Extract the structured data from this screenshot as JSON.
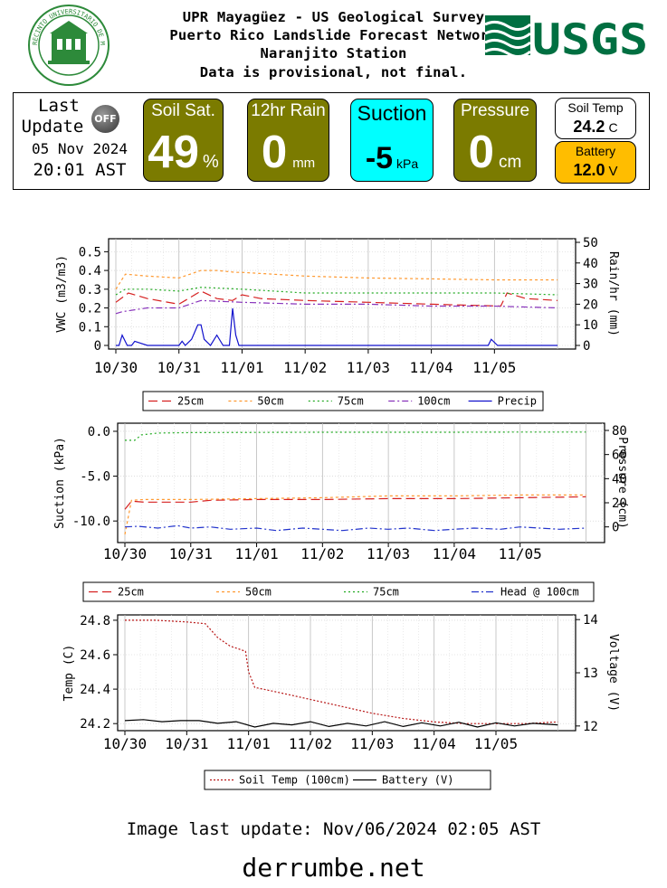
{
  "header": {
    "line1": "UPR Mayagüez - US Geological Survey",
    "line2": "Puerto Rico Landslide Forecast Network",
    "line3": "Naranjito Station",
    "line4": "Data is provisional, not final.",
    "usgs_logo_text": "USGS",
    "seal_text": "RECINTO UNIVERSITARIO DE MAYAGÜEZ"
  },
  "status": {
    "last_label": "Last",
    "update_label": "Update",
    "off_badge": "OFF",
    "date": "05 Nov 2024",
    "time": "20:01 AST",
    "soil_sat": {
      "title": "Soil Sat.",
      "value": "49",
      "unit": "%"
    },
    "rain": {
      "title": "12hr Rain",
      "value": "0",
      "unit": "mm"
    },
    "suction": {
      "title": "Suction",
      "value": "-5",
      "unit": "kPa"
    },
    "pressure": {
      "title": "Pressure",
      "value": "0",
      "unit": "cm"
    },
    "soil_temp": {
      "title": "Soil Temp",
      "value": "24.2",
      "unit": "C"
    },
    "battery": {
      "title": "Battery",
      "value": "12.0",
      "unit": "V"
    },
    "colors": {
      "olive": "#7b7b00",
      "cyan": "#00ffff",
      "orange": "#ffbd00"
    }
  },
  "chart_data": [
    {
      "type": "line",
      "xlabel": "",
      "ylabel": "VWC (m3/m3)",
      "y2label": "Rain/hr (mm)",
      "ylim": [
        0,
        0.55
      ],
      "y2lim": [
        0,
        50
      ],
      "yticks": [
        "0",
        "0.1",
        "0.2",
        "0.3",
        "0.4",
        "0.5"
      ],
      "y2ticks": [
        "0",
        "10",
        "20",
        "30",
        "40",
        "50"
      ],
      "x_ticks": [
        "10/30",
        "10/31",
        "11/01",
        "11/02",
        "11/03",
        "11/04",
        "11/05"
      ],
      "x_range_days": [
        0,
        7.2
      ],
      "legend": "bottom",
      "series": [
        {
          "name": "25cm",
          "color": "#d62020",
          "dash": "10,5",
          "axis": "left",
          "x": [
            0,
            0.2,
            0.5,
            1.0,
            1.35,
            1.6,
            1.85,
            2.0,
            2.3,
            3.0,
            4.0,
            5.0,
            6.1,
            6.2,
            6.5,
            7.0
          ],
          "y": [
            0.23,
            0.28,
            0.25,
            0.22,
            0.29,
            0.25,
            0.24,
            0.27,
            0.25,
            0.24,
            0.23,
            0.22,
            0.21,
            0.28,
            0.25,
            0.24
          ]
        },
        {
          "name": "50cm",
          "color": "#ff9930",
          "dash": "3,3",
          "axis": "left",
          "x": [
            0,
            0.15,
            0.5,
            1.0,
            1.35,
            1.6,
            1.9,
            2.0,
            3.0,
            4.0,
            5.0,
            6.0,
            7.0
          ],
          "y": [
            0.3,
            0.38,
            0.37,
            0.36,
            0.4,
            0.4,
            0.39,
            0.39,
            0.37,
            0.36,
            0.355,
            0.35,
            0.35
          ]
        },
        {
          "name": "75cm",
          "color": "#22aa22",
          "dash": "2,3",
          "axis": "left",
          "x": [
            0,
            0.15,
            0.5,
            1.0,
            1.35,
            2.0,
            3.0,
            4.0,
            5.0,
            6.0,
            7.0
          ],
          "y": [
            0.27,
            0.3,
            0.3,
            0.29,
            0.31,
            0.3,
            0.28,
            0.28,
            0.28,
            0.28,
            0.27
          ]
        },
        {
          "name": "100cm",
          "color": "#8833bb",
          "dash": "7,3,2,3",
          "axis": "left",
          "x": [
            0,
            0.1,
            0.5,
            1.0,
            1.35,
            2.0,
            3.0,
            4.0,
            5.0,
            6.0,
            7.0
          ],
          "y": [
            0.17,
            0.18,
            0.2,
            0.2,
            0.24,
            0.23,
            0.22,
            0.22,
            0.21,
            0.21,
            0.2
          ]
        },
        {
          "name": "Precip",
          "color": "#1010cc",
          "dash": "",
          "axis": "right",
          "x": [
            0,
            0.05,
            0.1,
            0.18,
            0.25,
            0.3,
            0.5,
            0.6,
            0.8,
            1.0,
            1.05,
            1.1,
            1.2,
            1.3,
            1.35,
            1.4,
            1.5,
            1.6,
            1.7,
            1.75,
            1.8,
            1.85,
            1.9,
            1.95,
            2.0,
            2.1,
            2.2,
            3.0,
            4.0,
            5.0,
            5.9,
            5.95,
            6.05,
            7.0
          ],
          "y": [
            0,
            0,
            5,
            0,
            0,
            2,
            0,
            0,
            0,
            0,
            2,
            0,
            3,
            10,
            10,
            3,
            0,
            5,
            0,
            0,
            0,
            18,
            5,
            0,
            0,
            0,
            0,
            0,
            0,
            0,
            0,
            3,
            0,
            0
          ]
        }
      ]
    },
    {
      "type": "line",
      "xlabel": "",
      "ylabel": "Suction (kPa)",
      "y2label": "Pressure (cm)",
      "ylim": [
        -12,
        0.5
      ],
      "y2lim": [
        -10,
        83
      ],
      "yticks": [
        "-10.0",
        "-5.0",
        "0.0"
      ],
      "y2ticks": [
        "0",
        "20",
        "40",
        "60",
        "80"
      ],
      "x_ticks": [
        "10/30",
        "10/31",
        "11/01",
        "11/02",
        "11/03",
        "11/04",
        "11/05"
      ],
      "x_range_days": [
        0,
        7.2
      ],
      "legend": "bottom",
      "series": [
        {
          "name": "25cm",
          "color": "#d62020",
          "dash": "10,5",
          "axis": "left",
          "x": [
            0,
            0.1,
            0.3,
            1.0,
            1.3,
            2.0,
            3.0,
            4.0,
            5.0,
            6.0,
            7.0
          ],
          "y": [
            -8.7,
            -7.8,
            -7.9,
            -7.9,
            -7.7,
            -7.6,
            -7.6,
            -7.5,
            -7.5,
            -7.4,
            -7.3
          ]
        },
        {
          "name": "50cm",
          "color": "#ff9930",
          "dash": "3,3",
          "axis": "left",
          "x": [
            0,
            0.1,
            0.3,
            1.0,
            2.0,
            3.0,
            4.0,
            5.0,
            6.0,
            7.0
          ],
          "y": [
            -11.5,
            -7.7,
            -7.6,
            -7.6,
            -7.5,
            -7.4,
            -7.2,
            -7.2,
            -7.1,
            -7.1
          ]
        },
        {
          "name": "75cm",
          "color": "#22aa22",
          "dash": "2,3",
          "axis": "left",
          "x": [
            0,
            0.15,
            0.25,
            0.5,
            1.0,
            2.0,
            3.0,
            4.0,
            5.0,
            6.0,
            7.0
          ],
          "y": [
            -1.0,
            -1.0,
            -0.4,
            -0.2,
            -0.15,
            -0.12,
            -0.1,
            -0.1,
            -0.1,
            -0.08,
            -0.08
          ]
        },
        {
          "name": "Head @ 100cm",
          "color": "#2233cc",
          "dash": "8,3,2,3",
          "axis": "right",
          "x": [
            0,
            0.2,
            0.5,
            0.8,
            1.0,
            1.3,
            1.6,
            2.0,
            2.3,
            2.7,
            3.0,
            3.3,
            3.7,
            4.0,
            4.3,
            4.7,
            5.0,
            5.3,
            5.7,
            6.0,
            6.3,
            6.6,
            7.0
          ],
          "y": [
            0,
            0.5,
            -1,
            1,
            -1,
            0,
            -2,
            -1,
            -3,
            -1,
            -2,
            -3,
            -1,
            -2,
            -1,
            -3,
            -2,
            -1,
            -2,
            0,
            -1,
            -2,
            -1
          ]
        }
      ]
    },
    {
      "type": "line",
      "xlabel": "",
      "ylabel": "Temp (C)",
      "y2label": "Voltage (V)",
      "ylim": [
        24.18,
        24.81
      ],
      "y2lim": [
        11.98,
        14.02
      ],
      "yticks": [
        "24.2",
        "24.4",
        "24.6",
        "24.8"
      ],
      "y2ticks": [
        "12",
        "13",
        "14"
      ],
      "x_ticks": [
        "10/30",
        "10/31",
        "11/01",
        "11/02",
        "11/03",
        "11/04",
        "11/05"
      ],
      "x_range_days": [
        0,
        7.2
      ],
      "legend": "bottom",
      "series": [
        {
          "name": "Soil Temp (100cm)",
          "color": "#b81818",
          "dash": "2,2",
          "axis": "left",
          "x": [
            0,
            0.5,
            1.0,
            1.3,
            1.5,
            1.7,
            1.95,
            2.0,
            2.1,
            2.5,
            3.0,
            3.5,
            4.0,
            4.5,
            5.0,
            5.5,
            6.0,
            6.5,
            7.0
          ],
          "y": [
            24.8,
            24.8,
            24.79,
            24.78,
            24.7,
            24.65,
            24.62,
            24.5,
            24.41,
            24.38,
            24.34,
            24.3,
            24.26,
            24.23,
            24.21,
            24.2,
            24.2,
            24.2,
            24.21
          ]
        },
        {
          "name": "Battery (V)",
          "color": "#000000",
          "dash": "",
          "axis": "right",
          "x": [
            0,
            0.3,
            0.6,
            0.9,
            1.2,
            1.5,
            1.8,
            2.1,
            2.4,
            2.7,
            3.0,
            3.3,
            3.6,
            3.9,
            4.2,
            4.5,
            4.8,
            5.1,
            5.4,
            5.7,
            6.0,
            6.3,
            6.6,
            7.0
          ],
          "y": [
            12.1,
            12.12,
            12.08,
            12.1,
            12.1,
            12.05,
            12.08,
            11.98,
            12.05,
            12.02,
            12.08,
            11.99,
            12.05,
            12.0,
            12.08,
            11.99,
            12.06,
            12.0,
            12.07,
            11.98,
            12.06,
            12.0,
            12.05,
            12.02
          ]
        }
      ]
    }
  ],
  "footer": {
    "image_update": "Image last update: Nov/06/2024 02:05  AST",
    "site": "derrumbe.net"
  }
}
